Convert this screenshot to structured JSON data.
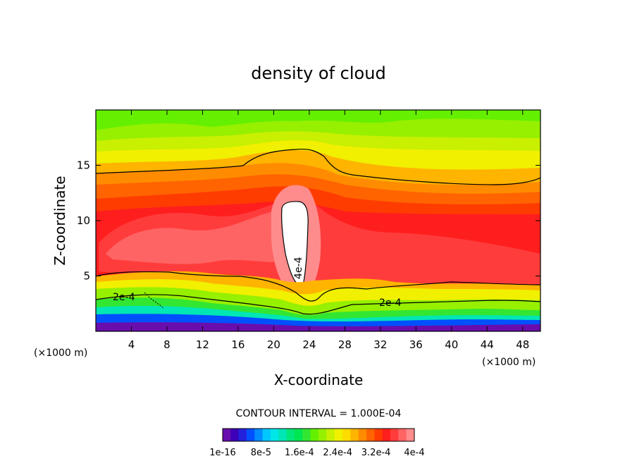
{
  "chart_data": {
    "type": "contour",
    "title": "density of cloud",
    "xlabel": "X-coordinate",
    "ylabel": "Z-coordinate",
    "x_unit": "(×1000 m)",
    "y_unit": "(×1000 m)",
    "xlim": [
      0,
      50
    ],
    "ylim": [
      0,
      20
    ],
    "x_ticks": [
      4,
      8,
      12,
      16,
      20,
      24,
      28,
      32,
      36,
      40,
      44,
      48
    ],
    "y_ticks": [
      5,
      10,
      15
    ],
    "contour_interval_text": "CONTOUR INTERVAL = 1.000E-04",
    "contour_labels": [
      {
        "text": "2e-4",
        "x": 3.5,
        "z": 3.0
      },
      {
        "text": "2e-4",
        "x": 33.2,
        "z": 2.6
      },
      {
        "text": "4e-4",
        "x": 23.2,
        "z": 6.5
      }
    ],
    "colorbar": {
      "colors": [
        "#6a0dad",
        "#3d00b8",
        "#2222dd",
        "#0050ff",
        "#008cff",
        "#00c8ff",
        "#00e6e6",
        "#00e6b4",
        "#00e678",
        "#00e650",
        "#32e632",
        "#64f000",
        "#96f000",
        "#c8f000",
        "#f0f000",
        "#ffdc00",
        "#ffb400",
        "#ff8c00",
        "#ff6400",
        "#ff3c00",
        "#ff1e1e",
        "#ff3c3c",
        "#ff6464",
        "#ff8c8c"
      ],
      "tick_labels": [
        "1e-16",
        "8e-5",
        "1.6e-4",
        "2.4e-4",
        "3.2e-4",
        "4e-4"
      ]
    }
  }
}
